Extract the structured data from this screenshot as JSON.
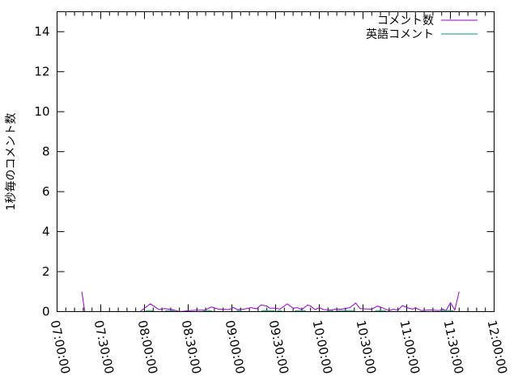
{
  "chart_data": {
    "type": "line",
    "title": "",
    "xlabel": "",
    "ylabel": "1秒毎のコメント数",
    "xlim": [
      "07:00:00",
      "12:00:00"
    ],
    "ylim": [
      0,
      15
    ],
    "grid": false,
    "legend_position": "top-right",
    "x_ticks": [
      "07:00:00",
      "07:30:00",
      "08:00:00",
      "08:30:00",
      "09:00:00",
      "09:30:00",
      "10:00:00",
      "10:30:00",
      "11:00:00",
      "11:30:00",
      "12:00:00"
    ],
    "y_ticks": [
      "0",
      "2",
      "4",
      "6",
      "8",
      "10",
      "12",
      "14"
    ],
    "series": [
      {
        "name": "コメント数",
        "color": "#9400d3",
        "points": [
          [
            "07:17:00",
            1.0
          ],
          [
            "07:19:00",
            0
          ],
          [
            "07:57:00",
            0
          ],
          [
            "08:04:00",
            0.39
          ],
          [
            "08:10:00",
            0.1
          ],
          [
            "08:14:00",
            0.15
          ],
          [
            "08:19:00",
            0.1
          ],
          [
            "08:24:00",
            0
          ],
          [
            "08:31:00",
            0.05
          ],
          [
            "08:36:00",
            0.07
          ],
          [
            "08:41:00",
            0.07
          ],
          [
            "08:46:00",
            0.23
          ],
          [
            "08:51:00",
            0.12
          ],
          [
            "08:58:00",
            0.1
          ],
          [
            "09:01:00",
            0.2
          ],
          [
            "09:04:00",
            0.1
          ],
          [
            "09:08:00",
            0.12
          ],
          [
            "09:13:00",
            0.2
          ],
          [
            "09:17:00",
            0.14
          ],
          [
            "09:20:00",
            0.33
          ],
          [
            "09:24:00",
            0.28
          ],
          [
            "09:26:00",
            0.17
          ],
          [
            "09:30:00",
            0.17
          ],
          [
            "09:33:00",
            0.12
          ],
          [
            "09:38:00",
            0.39
          ],
          [
            "09:42:00",
            0.17
          ],
          [
            "09:45:00",
            0.2
          ],
          [
            "09:48:00",
            0.1
          ],
          [
            "09:52:00",
            0.33
          ],
          [
            "09:54:00",
            0.28
          ],
          [
            "09:57:00",
            0.1
          ],
          [
            "10:00:00",
            0.2
          ],
          [
            "10:03:00",
            0.1
          ],
          [
            "10:08:00",
            0.08
          ],
          [
            "10:11:00",
            0.12
          ],
          [
            "10:15:00",
            0.12
          ],
          [
            "10:21:00",
            0.2
          ],
          [
            "10:25:00",
            0.43
          ],
          [
            "10:28:00",
            0.15
          ],
          [
            "10:36:00",
            0.12
          ],
          [
            "10:40:00",
            0.28
          ],
          [
            "10:44:00",
            0.17
          ],
          [
            "10:48:00",
            0.05
          ],
          [
            "10:51:00",
            0.12
          ],
          [
            "10:54:00",
            0.07
          ],
          [
            "10:57:00",
            0.3
          ],
          [
            "11:01:00",
            0.18
          ],
          [
            "11:04:00",
            0.12
          ],
          [
            "11:06:00",
            0.2
          ],
          [
            "11:10:00",
            0.05
          ],
          [
            "11:14:00",
            0.07
          ],
          [
            "11:17:00",
            0.08
          ],
          [
            "11:22:00",
            0.05
          ],
          [
            "11:25:00",
            0.12
          ],
          [
            "11:27:00",
            0.05
          ],
          [
            "11:30:00",
            0.45
          ],
          [
            "11:33:00",
            0.08
          ],
          [
            "11:36:00",
            1.0
          ]
        ]
      },
      {
        "name": "英語コメント",
        "color": "#009e73",
        "points": [
          [
            "08:00:00",
            0
          ],
          [
            "08:02:00",
            0.05
          ],
          [
            "08:05:00",
            0.05
          ],
          [
            "08:07:00",
            0
          ],
          [
            "08:14:00",
            0
          ],
          [
            "08:15:00",
            0.05
          ],
          [
            "08:19:00",
            0.05
          ],
          [
            "08:21:00",
            0
          ],
          [
            "08:40:00",
            0
          ],
          [
            "08:41:00",
            0.05
          ],
          [
            "08:45:00",
            0.05
          ],
          [
            "08:47:00",
            0
          ],
          [
            "09:03:00",
            0
          ],
          [
            "09:04:00",
            0.05
          ],
          [
            "09:06:00",
            0.05
          ],
          [
            "09:07:00",
            0
          ],
          [
            "09:20:00",
            0
          ],
          [
            "09:21:00",
            0.05
          ],
          [
            "09:28:00",
            0.05
          ],
          [
            "09:30:00",
            0
          ],
          [
            "09:33:00",
            0.05
          ],
          [
            "09:35:00",
            0
          ],
          [
            "09:43:00",
            0
          ],
          [
            "09:44:00",
            0.05
          ],
          [
            "09:50:00",
            0.05
          ],
          [
            "09:51:00",
            0
          ],
          [
            "10:05:00",
            0
          ],
          [
            "10:06:00",
            0.05
          ],
          [
            "10:09:00",
            0.05
          ],
          [
            "10:10:00",
            0
          ],
          [
            "10:14:00",
            0.05
          ],
          [
            "10:24:00",
            0.05
          ],
          [
            "10:25:00",
            0
          ],
          [
            "10:38:00",
            0
          ],
          [
            "10:39:00",
            0.05
          ],
          [
            "10:45:00",
            0.05
          ],
          [
            "10:46:00",
            0
          ],
          [
            "11:23:00",
            0
          ],
          [
            "11:24:00",
            0.05
          ],
          [
            "11:31:00",
            0.05
          ],
          [
            "11:33:00",
            0
          ]
        ]
      }
    ]
  }
}
